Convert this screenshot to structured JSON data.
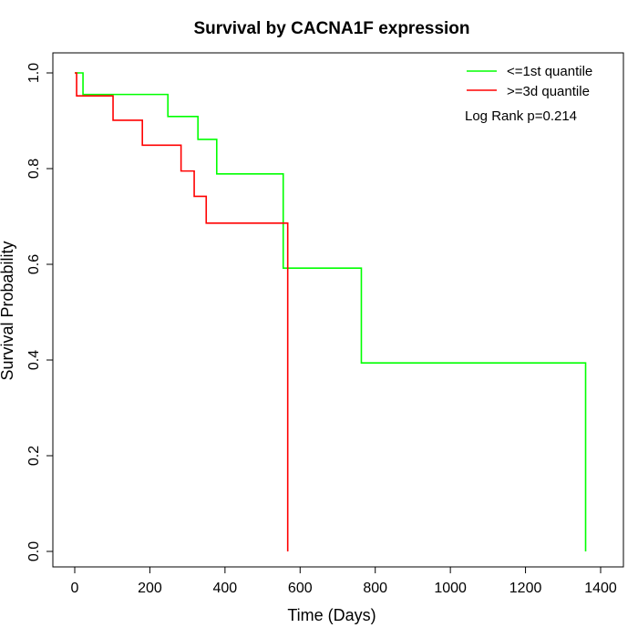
{
  "chart_data": {
    "type": "line",
    "step": true,
    "title": "Survival by CACNA1F expression",
    "xlabel": "Time (Days)",
    "ylabel": "Survival Probability",
    "xlim": [
      0,
      1400
    ],
    "ylim": [
      0,
      1
    ],
    "xticks": [
      0,
      200,
      400,
      600,
      800,
      1000,
      1200,
      1400
    ],
    "yticks": [
      0.0,
      0.2,
      0.4,
      0.6,
      0.8,
      1.0
    ],
    "xtick_labels": [
      "0",
      "200",
      "400",
      "600",
      "800",
      "1000",
      "1200",
      "1400"
    ],
    "ytick_labels": [
      "0.0",
      "0.2",
      "0.4",
      "0.6",
      "0.8",
      "1.0"
    ],
    "grid": false,
    "legend_position": "top-right",
    "annotation": "Log Rank p=0.214",
    "series": [
      {
        "name": "<=1st quantile",
        "color": "#00ff00",
        "x": [
          0,
          22,
          248,
          328,
          378,
          555,
          763,
          1360,
          1360
        ],
        "y": [
          1.0,
          0.955,
          0.909,
          0.861,
          0.789,
          0.592,
          0.394,
          0.394,
          0.0
        ]
      },
      {
        "name": ">=3d quantile",
        "color": "#ff0000",
        "x": [
          0,
          5,
          102,
          180,
          283,
          318,
          350,
          567,
          567
        ],
        "y": [
          1.0,
          0.952,
          0.901,
          0.849,
          0.795,
          0.742,
          0.686,
          0.686,
          0.0
        ]
      }
    ]
  }
}
